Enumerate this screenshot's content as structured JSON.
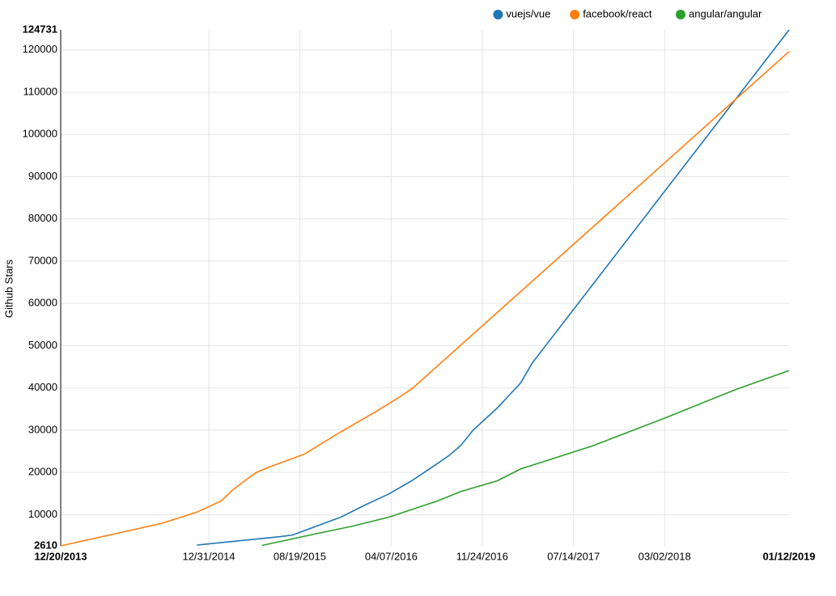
{
  "chart_data": {
    "type": "line",
    "y_label": "Github Stars",
    "xlim": [
      "12/20/2013",
      "01/12/2019"
    ],
    "xticks": [
      "12/31/2014",
      "08/19/2015",
      "04/07/2016",
      "11/24/2016",
      "07/14/2017",
      "03/02/2018"
    ],
    "ylim": [
      2610,
      124731
    ],
    "yticks": [
      10000,
      20000,
      30000,
      40000,
      50000,
      60000,
      70000,
      80000,
      90000,
      100000,
      110000,
      120000
    ],
    "grid": true,
    "legend": "top-right",
    "series": [
      {
        "name": "vuejs/vue",
        "color": "#1f77b4",
        "x": [
          "12/01/2014",
          "07/01/2015",
          "08/01/2015",
          "10/01/2015",
          "12/01/2015",
          "02/01/2016",
          "04/01/2016",
          "06/01/2016",
          "08/01/2016",
          "09/01/2016",
          "10/01/2016",
          "11/01/2016",
          "01/01/2017",
          "02/01/2017",
          "03/01/2017",
          "04/01/2017",
          "01/12/2019"
        ],
        "values": [
          2800,
          4800,
          5200,
          7300,
          9400,
          12300,
          14900,
          18200,
          22000,
          24000,
          26400,
          30000,
          35200,
          38300,
          41100,
          46000,
          124731
        ]
      },
      {
        "name": "facebook/react",
        "color": "#ff7f0e",
        "x": [
          "12/20/2013",
          "09/01/2014",
          "12/01/2014",
          "02/01/2015",
          "03/01/2015",
          "04/01/2015",
          "05/01/2015",
          "06/01/2015",
          "09/01/2015",
          "12/01/2015",
          "03/01/2016",
          "05/01/2016",
          "06/01/2016",
          "01/12/2019"
        ],
        "values": [
          2610,
          7900,
          10600,
          13300,
          15800,
          18000,
          20000,
          21200,
          24400,
          29600,
          34500,
          38000,
          40000,
          119600
        ]
      },
      {
        "name": "angular/angular",
        "color": "#2ca02c",
        "x": [
          "05/15/2015",
          "09/01/2015",
          "01/01/2016",
          "04/01/2016",
          "08/01/2016",
          "10/01/2016",
          "01/01/2017",
          "03/01/2017",
          "09/01/2017",
          "03/01/2018",
          "09/01/2018",
          "01/12/2019"
        ],
        "values": [
          2700,
          4900,
          7300,
          9400,
          13200,
          15500,
          18000,
          20800,
          26300,
          32800,
          39700,
          44100
        ]
      }
    ]
  }
}
